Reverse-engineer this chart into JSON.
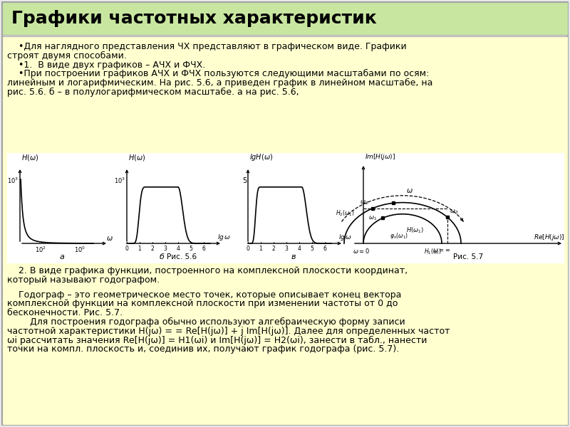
{
  "title": "Графики частотных характеристик",
  "title_bg": "#c8e6a0",
  "content_bg": "#ffffd0",
  "white_bg": "#ffffff",
  "text_color": "#000000",
  "header_fontsize": 18,
  "body_fontsize": 9.0,
  "para1_lines": [
    "    •Для наглядного представления ЧХ представляют в графическом виде. Графики",
    "строят двумя способами.",
    "    •1.  В виде двух графиков – АЧХ и ФЧХ.",
    "    •При построении графиков АЧХ и ФЧХ пользуются следующими масштабами по осям:",
    "линейным и логарифмическим. На рис. 5.6, а приведен график в линейном масштабе, на",
    "рис. 5.6. б – в полулогарифмическом масштабе. а на рис. 5.6,"
  ],
  "para2_lines": [
    "    2. В виде графика функции, построенного на комплексной плоскости координат,",
    "который называют годографом."
  ],
  "para3_lines": [
    "    Годограф – это геометрическое место точек, которые описывает конец вектора",
    "комплексной функции на комплексной плоскости при изменении частоты от 0 до",
    "бесконечности. Рис. 5.7.",
    "        Для построения годографа обычно используют алгебраическую форму записи",
    "частотной характеристики H(jω) = = Re[H(jω)] + j Im[H(jω)]. Далее для определенных частот",
    "ωi рассчитать значения Re[H(jω)] = H1(ωi) и Im[H(jω)] = H2(ωi), занести в табл., нанести",
    "точки на компл. плоскость и, соединив их, получают график годографа (рис. 5.7)."
  ]
}
